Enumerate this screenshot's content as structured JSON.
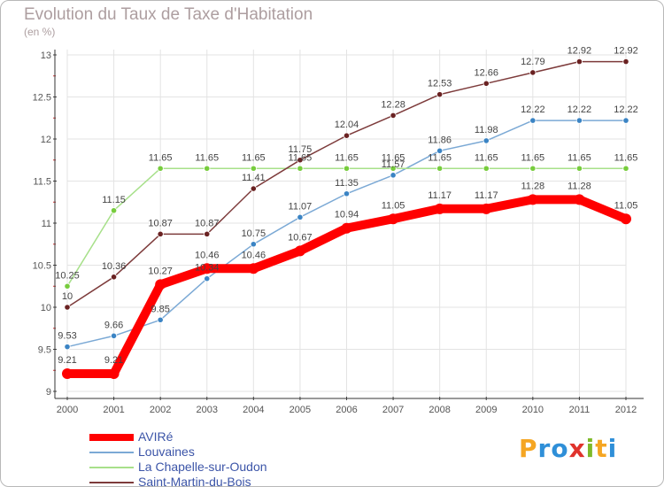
{
  "title": "Evolution du Taux de Taxe d'Habitation",
  "subtitle": "(en %)",
  "logo": {
    "letters": [
      "P",
      "r",
      "o",
      "x",
      "i",
      "t",
      "i"
    ],
    "colors": [
      "#f5a623",
      "#2f8fd8",
      "#2f8fd8",
      "#e0332c",
      "#7fba2a",
      "#f5a623",
      "#2f8fd8"
    ]
  },
  "chart_data": {
    "type": "line",
    "x": [
      "2000",
      "2001",
      "2002",
      "2003",
      "2004",
      "2005",
      "2006",
      "2007",
      "2008",
      "2009",
      "2010",
      "2011",
      "2012"
    ],
    "ylim": [
      9,
      13
    ],
    "yticks": [
      9,
      9.5,
      10,
      10.5,
      11,
      11.5,
      12,
      12.5,
      13
    ],
    "ytick_labels": [
      "9",
      "9.5",
      "10",
      "10.5",
      "11",
      "11.5",
      "12",
      "12.5",
      "13"
    ],
    "xlabel": "",
    "ylabel": "",
    "legend_position": "bottom-left",
    "series": [
      {
        "name": "AVIRé",
        "color": "#ff0000",
        "emphasis": true,
        "values": [
          9.21,
          9.21,
          10.27,
          10.46,
          10.46,
          10.67,
          10.94,
          11.05,
          11.17,
          11.17,
          11.28,
          11.28,
          11.05
        ],
        "labels": [
          "9.21",
          "9.21",
          "10.27",
          "10.46",
          "10.46",
          "10.67",
          "10.94",
          "11.05",
          "11.17",
          "11.17",
          "11.28",
          "11.28",
          "11.05"
        ]
      },
      {
        "name": "Louvaines",
        "color": "#7ba9d5",
        "marker": "#3b84c4",
        "values": [
          9.53,
          9.66,
          9.85,
          10.34,
          10.75,
          11.07,
          11.35,
          11.57,
          11.86,
          11.98,
          12.22,
          12.22,
          12.22
        ],
        "labels": [
          "9.53",
          "9.66",
          "9.85",
          "10.34",
          "10.75",
          "11.07",
          "11.35",
          "11.57",
          "11.86",
          "11.98",
          "12.22",
          "12.22",
          "12.22"
        ]
      },
      {
        "name": "La Chapelle-sur-Oudon",
        "color": "#a7e08a",
        "marker": "#77cc3d",
        "values": [
          10.25,
          11.15,
          11.65,
          11.65,
          11.65,
          11.65,
          11.65,
          11.65,
          11.65,
          11.65,
          11.65,
          11.65,
          11.65
        ],
        "labels": [
          "10.25",
          "11.15",
          "11.65",
          "11.65",
          "11.65",
          "11.65",
          "11.65",
          "11.65",
          "11.65",
          "11.65",
          "11.65",
          "11.65",
          "11.65"
        ]
      },
      {
        "name": "Saint-Martin-du-Bois",
        "color": "#7d3b3b",
        "marker": "#6a2222",
        "values": [
          10,
          10.36,
          10.87,
          10.87,
          11.41,
          11.75,
          12.04,
          12.28,
          12.53,
          12.66,
          12.79,
          12.92,
          12.92
        ],
        "labels": [
          "10",
          "10.36",
          "10.87",
          "10.87",
          "11.41",
          "11.75",
          "12.04",
          "12.28",
          "12.53",
          "12.66",
          "12.79",
          "12.92",
          "12.92"
        ]
      }
    ]
  }
}
